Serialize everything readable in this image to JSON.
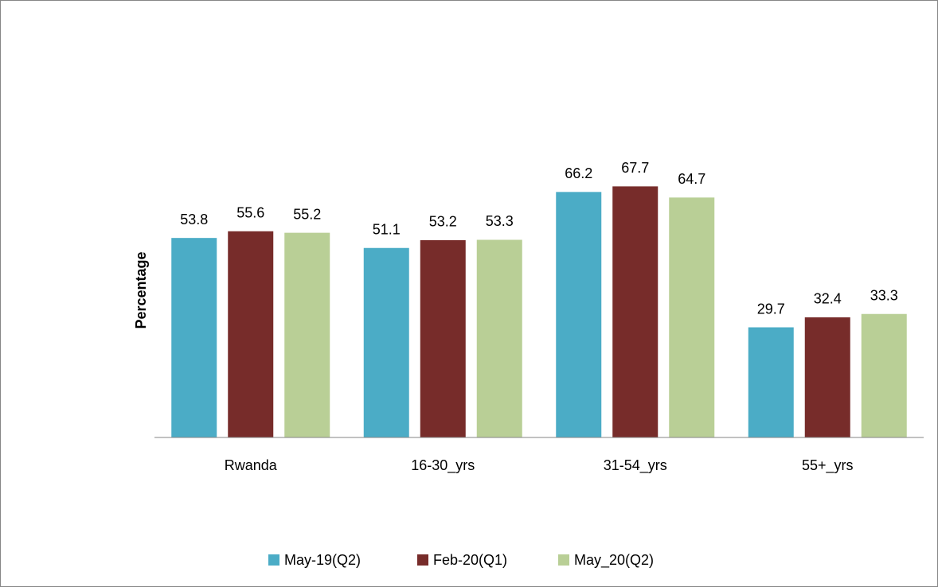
{
  "chart_data": {
    "type": "bar",
    "y_label": "Percentage",
    "categories": [
      "Rwanda",
      "16-30_yrs",
      "31-54_yrs",
      "55+_yrs"
    ],
    "series": [
      {
        "name": "May-19(Q2)",
        "color": "#4bacc6",
        "values": [
          53.8,
          51.1,
          66.2,
          29.7
        ]
      },
      {
        "name": "Feb-20(Q1)",
        "color": "#772c2a",
        "values": [
          55.6,
          53.2,
          67.7,
          32.4
        ]
      },
      {
        "name": "May_20(Q2)",
        "color": "#b9cf96",
        "values": [
          55.2,
          53.3,
          64.7,
          33.3
        ]
      }
    ],
    "ylim": [
      0,
      80
    ],
    "legend": "bottom"
  }
}
